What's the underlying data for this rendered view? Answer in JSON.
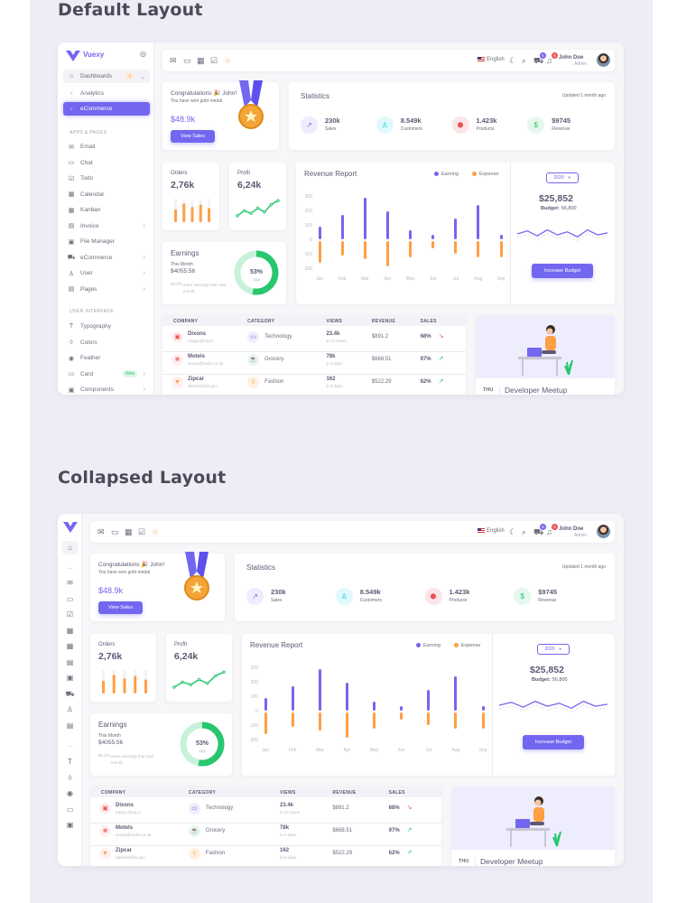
{
  "sections": {
    "default_title": "Default Layout",
    "collapsed_title": "Collapsed Layout"
  },
  "brand": {
    "name": "Vuexy"
  },
  "sidebar": {
    "dashboards": {
      "label": "Dashboards",
      "badge": "2"
    },
    "dash_items": [
      {
        "label": "Analytics"
      },
      {
        "label": "eCommerce"
      }
    ],
    "apps_header": "APPS & PAGES",
    "apps": [
      {
        "label": "Email",
        "icon": "mail-icon"
      },
      {
        "label": "Chat",
        "icon": "chat-icon"
      },
      {
        "label": "Todo",
        "icon": "check-square-icon"
      },
      {
        "label": "Calendar",
        "icon": "calendar-icon"
      },
      {
        "label": "Kanban",
        "icon": "grid-icon"
      },
      {
        "label": "Invoice",
        "icon": "file-icon"
      },
      {
        "label": "File Manager",
        "icon": "save-icon"
      },
      {
        "label": "eCommerce",
        "icon": "cart-icon"
      },
      {
        "label": "User",
        "icon": "user-icon"
      },
      {
        "label": "Pages",
        "icon": "file-text-icon"
      }
    ],
    "ui_header": "USER INTERFACE",
    "ui": [
      {
        "label": "Typography",
        "icon": "type-icon"
      },
      {
        "label": "Colors",
        "icon": "droplet-icon"
      },
      {
        "label": "Feather",
        "icon": "eye-icon"
      },
      {
        "label": "Card",
        "icon": "credit-card-icon",
        "badge": "New"
      },
      {
        "label": "Components",
        "icon": "briefcase-icon"
      }
    ]
  },
  "topbar": {
    "language": "English",
    "user_name": "John Doe",
    "user_role": "Admin",
    "cart_count": "6",
    "notif_count": "5"
  },
  "congrats": {
    "title": "Congratulations 🎉 John!",
    "subtitle": "You have won gold medal",
    "amount": "$48.9k",
    "button": "View Sales"
  },
  "statistics": {
    "title": "Statistics",
    "updated": "Updated 1 month ago",
    "items": [
      {
        "value": "230k",
        "label": "Sales",
        "icon": "trending-up-icon",
        "color": "#7367f0",
        "bg": "#eeedfd"
      },
      {
        "value": "8.549k",
        "label": "Customers",
        "icon": "user-icon",
        "color": "#00cfe8",
        "bg": "#e0f9fc"
      },
      {
        "value": "1.423k",
        "label": "Products",
        "icon": "box-icon",
        "color": "#ea5455",
        "bg": "#fce5e6"
      },
      {
        "value": "$9745",
        "label": "Revenue",
        "icon": "dollar-icon",
        "color": "#28c76f",
        "bg": "#e5f8ed"
      }
    ]
  },
  "orders": {
    "label": "Orders",
    "value": "2,76k",
    "chart_data": {
      "type": "bar",
      "values": [
        0.55,
        0.8,
        0.65,
        0.75,
        0.6
      ],
      "color": "#ff9f43"
    }
  },
  "profit": {
    "label": "Profit",
    "value": "6,24k",
    "chart_data": {
      "type": "line",
      "values": [
        0.25,
        0.45,
        0.35,
        0.55,
        0.4,
        0.7,
        0.85
      ],
      "color": "#28c76f"
    }
  },
  "earnings": {
    "title": "Earnings",
    "period": "This Month",
    "amount": "$4055.56",
    "note_strong": "68.2%",
    "note": "more earnings than last month.",
    "percent_label": "53%",
    "percent_sub": "App",
    "chart_data": {
      "type": "pie",
      "values": [
        53,
        47
      ],
      "colors": [
        "#28c76f",
        "#c8f1d9"
      ]
    }
  },
  "revenue": {
    "title": "Revenue Report",
    "legend": [
      {
        "name": "Earning",
        "color": "#7367f0"
      },
      {
        "name": "Expense",
        "color": "#ff9f43"
      }
    ],
    "chart_data": {
      "type": "bar",
      "categories": [
        "Jan",
        "Feb",
        "Mar",
        "Apr",
        "May",
        "Jun",
        "Jul",
        "Aug",
        "Sep"
      ],
      "ylim": [
        -200,
        300
      ],
      "y_ticks": [
        "300",
        "200",
        "100",
        "0",
        "-100",
        "-200"
      ],
      "series": [
        {
          "name": "Earning",
          "values": [
            95,
            178,
            295,
            200,
            70,
            40,
            150,
            245,
            40
          ]
        },
        {
          "name": "Expense",
          "values": [
            -150,
            -100,
            -125,
            -175,
            -110,
            -50,
            -90,
            -110,
            -110
          ]
        }
      ]
    },
    "year": "2020",
    "total": "$25,852",
    "budget_label": "Budget:",
    "budget_value": "56,800",
    "budget_line": {
      "type": "line",
      "values": [
        0.5,
        0.35,
        0.6,
        0.3,
        0.55,
        0.4,
        0.65,
        0.3,
        0.55,
        0.45
      ],
      "color": "#7367f0"
    },
    "button": "Increase Budget"
  },
  "company_table": {
    "headers": [
      "COMPANY",
      "CATEGORY",
      "VIEWS",
      "REVENUE",
      "SALES"
    ],
    "rows": [
      {
        "name": "Dixons",
        "email": "meguc@ruj.io",
        "category": "Technology",
        "views": "23.4k",
        "views_sub": "in 24 hours",
        "revenue": "$891.2",
        "sales": "68%",
        "trend": "down",
        "logo_color": "#ea5455",
        "cat_color": "#7367f0",
        "cat_bg": "#eeedfd"
      },
      {
        "name": "Motels",
        "email": "vecav@hodzi.co.uk",
        "category": "Grocery",
        "views": "78k",
        "views_sub": "in 2 days",
        "revenue": "$668.51",
        "sales": "97%",
        "trend": "up",
        "logo_color": "#ea5455",
        "cat_color": "#28c76f",
        "cat_bg": "#e5f8ed"
      },
      {
        "name": "Zipcar",
        "email": "davcilse@is.gov",
        "category": "Fashion",
        "views": "162",
        "views_sub": "in 5 days",
        "revenue": "$522.29",
        "sales": "62%",
        "trend": "up",
        "logo_color": "#ff9f43",
        "cat_color": "#ff9f43",
        "cat_bg": "#fff0e1"
      }
    ]
  },
  "meetup": {
    "day": "THU",
    "date": "24",
    "title": "Developer Meetup"
  }
}
